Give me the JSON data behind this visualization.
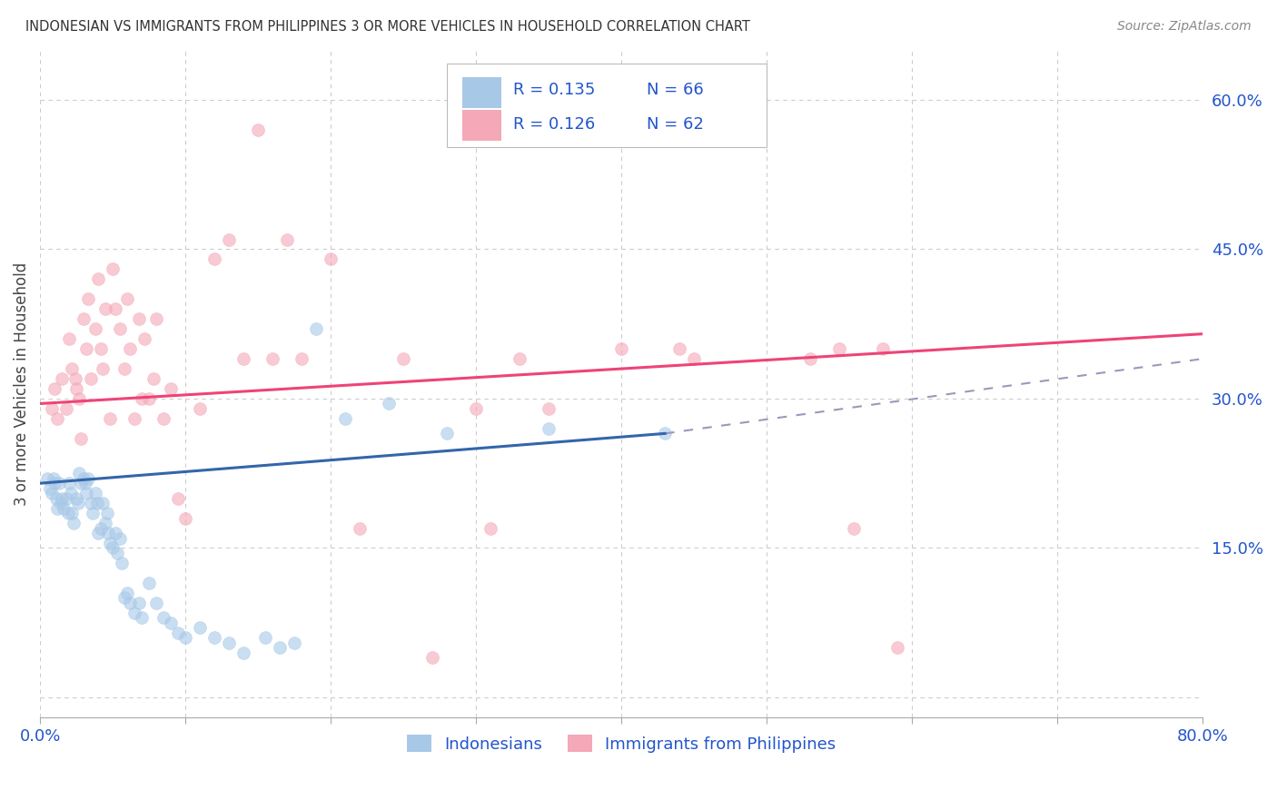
{
  "title": "INDONESIAN VS IMMIGRANTS FROM PHILIPPINES 3 OR MORE VEHICLES IN HOUSEHOLD CORRELATION CHART",
  "source": "Source: ZipAtlas.com",
  "xlabel_bottom": [
    "Indonesians",
    "Immigrants from Philippines"
  ],
  "ylabel": "3 or more Vehicles in Household",
  "xlim": [
    0.0,
    0.8
  ],
  "ylim": [
    -0.02,
    0.65
  ],
  "xticks": [
    0.0,
    0.1,
    0.2,
    0.3,
    0.4,
    0.5,
    0.6,
    0.7,
    0.8
  ],
  "xticklabels": [
    "0.0%",
    "",
    "",
    "",
    "",
    "",
    "",
    "",
    "80.0%"
  ],
  "yticks_right": [
    0.0,
    0.15,
    0.3,
    0.45,
    0.6
  ],
  "yticklabels_right": [
    "",
    "15.0%",
    "30.0%",
    "45.0%",
    "60.0%"
  ],
  "legend_R1": "R = 0.135",
  "legend_N1": "N = 66",
  "legend_R2": "R = 0.126",
  "legend_N2": "N = 62",
  "blue_color": "#a8c8e8",
  "pink_color": "#f4a8b8",
  "line_blue_color": "#3366aa",
  "line_pink_color": "#ee4477",
  "dashed_line_color": "#9999bb",
  "legend_text_color": "#2255cc",
  "blue_scatter_x": [
    0.005,
    0.007,
    0.008,
    0.009,
    0.01,
    0.011,
    0.012,
    0.013,
    0.014,
    0.015,
    0.016,
    0.018,
    0.019,
    0.02,
    0.021,
    0.022,
    0.023,
    0.025,
    0.026,
    0.027,
    0.028,
    0.03,
    0.031,
    0.032,
    0.033,
    0.035,
    0.036,
    0.038,
    0.039,
    0.04,
    0.042,
    0.043,
    0.045,
    0.046,
    0.047,
    0.048,
    0.05,
    0.052,
    0.053,
    0.055,
    0.056,
    0.058,
    0.06,
    0.062,
    0.065,
    0.068,
    0.07,
    0.075,
    0.08,
    0.085,
    0.09,
    0.095,
    0.1,
    0.11,
    0.12,
    0.13,
    0.14,
    0.155,
    0.165,
    0.175,
    0.19,
    0.21,
    0.24,
    0.28,
    0.35,
    0.43
  ],
  "blue_scatter_y": [
    0.22,
    0.21,
    0.205,
    0.22,
    0.215,
    0.2,
    0.19,
    0.215,
    0.195,
    0.2,
    0.19,
    0.2,
    0.185,
    0.215,
    0.205,
    0.185,
    0.175,
    0.2,
    0.195,
    0.225,
    0.215,
    0.22,
    0.215,
    0.205,
    0.22,
    0.195,
    0.185,
    0.205,
    0.195,
    0.165,
    0.17,
    0.195,
    0.175,
    0.185,
    0.165,
    0.155,
    0.15,
    0.165,
    0.145,
    0.16,
    0.135,
    0.1,
    0.105,
    0.095,
    0.085,
    0.095,
    0.08,
    0.115,
    0.095,
    0.08,
    0.075,
    0.065,
    0.06,
    0.07,
    0.06,
    0.055,
    0.045,
    0.06,
    0.05,
    0.055,
    0.37,
    0.28,
    0.295,
    0.265,
    0.27,
    0.265
  ],
  "pink_scatter_x": [
    0.008,
    0.01,
    0.012,
    0.015,
    0.018,
    0.02,
    0.022,
    0.024,
    0.025,
    0.027,
    0.028,
    0.03,
    0.032,
    0.033,
    0.035,
    0.038,
    0.04,
    0.042,
    0.043,
    0.045,
    0.048,
    0.05,
    0.052,
    0.055,
    0.058,
    0.06,
    0.062,
    0.065,
    0.068,
    0.07,
    0.072,
    0.075,
    0.078,
    0.08,
    0.085,
    0.09,
    0.095,
    0.1,
    0.11,
    0.12,
    0.13,
    0.14,
    0.15,
    0.16,
    0.17,
    0.18,
    0.2,
    0.22,
    0.25,
    0.27,
    0.3,
    0.31,
    0.33,
    0.35,
    0.4,
    0.44,
    0.45,
    0.53,
    0.55,
    0.56,
    0.58,
    0.59
  ],
  "pink_scatter_y": [
    0.29,
    0.31,
    0.28,
    0.32,
    0.29,
    0.36,
    0.33,
    0.32,
    0.31,
    0.3,
    0.26,
    0.38,
    0.35,
    0.4,
    0.32,
    0.37,
    0.42,
    0.35,
    0.33,
    0.39,
    0.28,
    0.43,
    0.39,
    0.37,
    0.33,
    0.4,
    0.35,
    0.28,
    0.38,
    0.3,
    0.36,
    0.3,
    0.32,
    0.38,
    0.28,
    0.31,
    0.2,
    0.18,
    0.29,
    0.44,
    0.46,
    0.34,
    0.57,
    0.34,
    0.46,
    0.34,
    0.44,
    0.17,
    0.34,
    0.04,
    0.29,
    0.17,
    0.34,
    0.29,
    0.35,
    0.35,
    0.34,
    0.34,
    0.35,
    0.17,
    0.35,
    0.05
  ],
  "blue_line_x0": 0.0,
  "blue_line_x1": 0.43,
  "blue_line_y0": 0.215,
  "blue_line_y1": 0.265,
  "pink_line_x0": 0.0,
  "pink_line_x1": 0.8,
  "pink_line_y0": 0.295,
  "pink_line_y1": 0.365,
  "dashed_line_x0": 0.43,
  "dashed_line_x1": 0.8,
  "dashed_line_y0": 0.265,
  "dashed_line_y1": 0.34,
  "background_color": "#ffffff",
  "grid_color": "#cccccc",
  "grid_dash": [
    4,
    4
  ],
  "marker_size": 100,
  "marker_alpha": 0.6
}
